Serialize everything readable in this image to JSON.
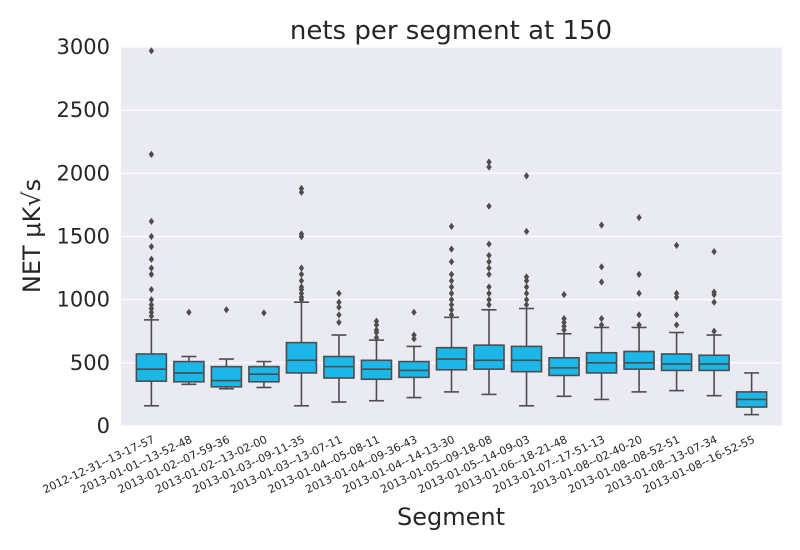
{
  "chart_data": {
    "type": "box",
    "title": "nets per segment at 150",
    "xlabel": "Segment",
    "ylabel": "NET μK√s",
    "ylim": [
      0,
      3000
    ],
    "yticks": [
      "0",
      "500",
      "1000",
      "1500",
      "2000",
      "2500",
      "3000"
    ],
    "grid": true,
    "box_color": "#1bb7e8",
    "background_color": "#eaeaf2",
    "categories": [
      "2012-12-31--13-17-57",
      "2013-01-01--13-52-48",
      "2013-01-02--07-59-36",
      "2013-01-02--13-02-00",
      "2013-01-03--09-11-35",
      "2013-01-03--13-07-11",
      "2013-01-04--05-08-11",
      "2013-01-04--09-36-43",
      "2013-01-04--14-13-30",
      "2013-01-05--09-18-08",
      "2013-01-05--14-09-03",
      "2013-01-06--18-21-48",
      "2013-01-07--17-51-13",
      "2013-01-08--02-40-20",
      "2013-01-08--08-52-51",
      "2013-01-08--13-07-34",
      "2013-01-08--16-52-55"
    ],
    "boxes": [
      {
        "whislo": 160,
        "q1": 355,
        "med": 450,
        "q3": 570,
        "whishi": 840,
        "fliers": [
          870,
          900,
          930,
          960,
          1000,
          1080,
          1200,
          1250,
          1320,
          1420,
          1500,
          1620,
          2150,
          2970
        ]
      },
      {
        "whislo": 330,
        "q1": 350,
        "med": 420,
        "q3": 510,
        "whishi": 550,
        "fliers": [
          900
        ]
      },
      {
        "whislo": 295,
        "q1": 310,
        "med": 360,
        "q3": 470,
        "whishi": 530,
        "fliers": [
          920
        ]
      },
      {
        "whislo": 305,
        "q1": 350,
        "med": 410,
        "q3": 470,
        "whishi": 510,
        "fliers": [
          895
        ]
      },
      {
        "whislo": 160,
        "q1": 420,
        "med": 520,
        "q3": 660,
        "whishi": 980,
        "fliers": [
          1000,
          1020,
          1050,
          1080,
          1100,
          1150,
          1200,
          1250,
          1500,
          1520,
          1850,
          1880
        ]
      },
      {
        "whislo": 190,
        "q1": 380,
        "med": 470,
        "q3": 550,
        "whishi": 720,
        "fliers": [
          820,
          880,
          940,
          980,
          1050
        ]
      },
      {
        "whislo": 200,
        "q1": 370,
        "med": 450,
        "q3": 520,
        "whishi": 680,
        "fliers": [
          700,
          740,
          760,
          800,
          830
        ]
      },
      {
        "whislo": 225,
        "q1": 385,
        "med": 440,
        "q3": 510,
        "whishi": 630,
        "fliers": [
          690,
          720,
          900
        ]
      },
      {
        "whislo": 270,
        "q1": 445,
        "med": 530,
        "q3": 620,
        "whishi": 860,
        "fliers": [
          880,
          920,
          960,
          1000,
          1050,
          1100,
          1150,
          1200,
          1300,
          1400,
          1580
        ]
      },
      {
        "whislo": 250,
        "q1": 450,
        "med": 520,
        "q3": 640,
        "whishi": 920,
        "fliers": [
          960,
          1000,
          1050,
          1100,
          1200,
          1250,
          1300,
          1350,
          1440,
          1740,
          2050,
          2090
        ]
      },
      {
        "whislo": 160,
        "q1": 430,
        "med": 520,
        "q3": 630,
        "whishi": 930,
        "fliers": [
          960,
          1000,
          1050,
          1100,
          1150,
          1180,
          1540,
          1980
        ]
      },
      {
        "whislo": 235,
        "q1": 400,
        "med": 460,
        "q3": 540,
        "whishi": 730,
        "fliers": [
          760,
          790,
          820,
          850,
          1040
        ]
      },
      {
        "whislo": 210,
        "q1": 420,
        "med": 500,
        "q3": 580,
        "whishi": 780,
        "fliers": [
          800,
          850,
          1140,
          1260,
          1590
        ]
      },
      {
        "whislo": 270,
        "q1": 450,
        "med": 500,
        "q3": 590,
        "whishi": 780,
        "fliers": [
          800,
          880,
          1050,
          1200,
          1650
        ]
      },
      {
        "whislo": 280,
        "q1": 440,
        "med": 490,
        "q3": 570,
        "whishi": 740,
        "fliers": [
          800,
          880,
          1020,
          1050,
          1430
        ]
      },
      {
        "whislo": 240,
        "q1": 440,
        "med": 490,
        "q3": 560,
        "whishi": 720,
        "fliers": [
          750,
          980,
          1040,
          1060,
          1380
        ]
      },
      {
        "whislo": 90,
        "q1": 150,
        "med": 210,
        "q3": 270,
        "whishi": 420,
        "fliers": []
      }
    ]
  }
}
